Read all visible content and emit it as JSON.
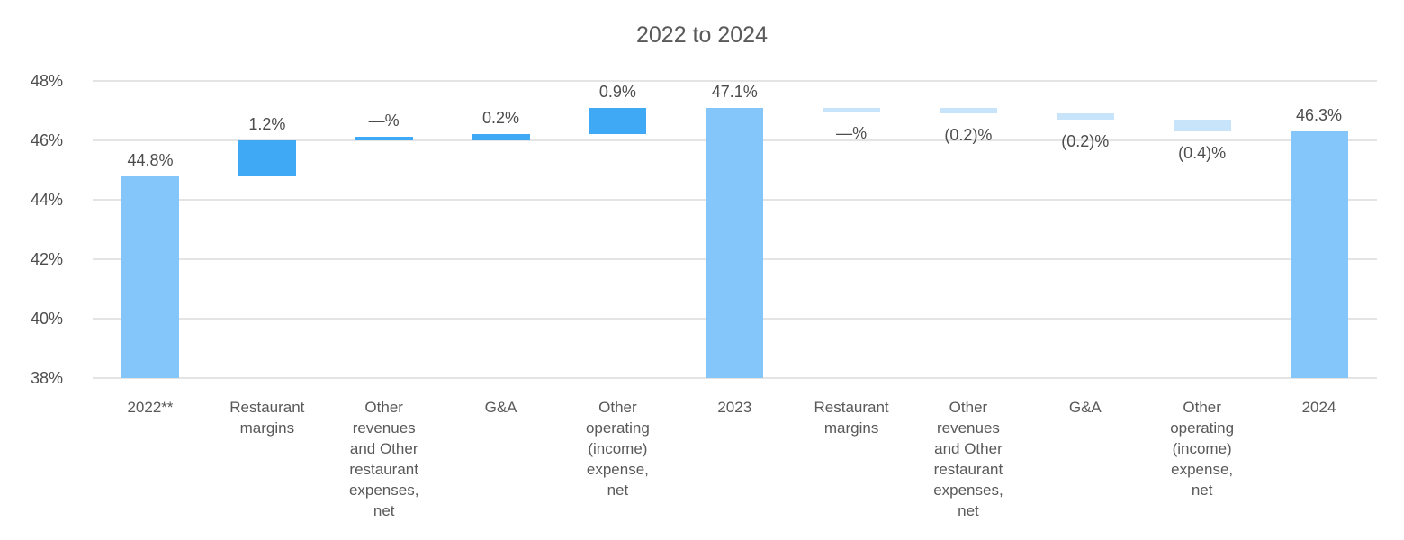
{
  "title": "2022 to 2024",
  "chart_data": {
    "type": "bar",
    "subtype": "waterfall",
    "title": "2022 to 2024",
    "y_axis": {
      "min": 38,
      "max": 48,
      "tick_step": 2,
      "tick_labels": [
        "48%",
        "46%",
        "44%",
        "42%",
        "40%",
        "38%"
      ],
      "grid": true
    },
    "colors": {
      "total": "#84C6F9",
      "increase": "#3FA9F6",
      "decrease": "#C8E4FB"
    },
    "bars": [
      {
        "label": "2022**",
        "type": "total",
        "start": 38,
        "end": 44.8,
        "value": 44.8,
        "value_label": "44.8%"
      },
      {
        "label": "Restaurant margins",
        "type": "increase",
        "start": 44.8,
        "end": 46.0,
        "delta": 1.2,
        "value_label": "1.2%"
      },
      {
        "label": "Other revenues and Other restaurant expenses, net",
        "type": "increase",
        "start": 46.0,
        "end": 46.0,
        "delta": 0.0,
        "value_label": "—%"
      },
      {
        "label": "G&A",
        "type": "increase",
        "start": 46.0,
        "end": 46.2,
        "delta": 0.2,
        "value_label": "0.2%"
      },
      {
        "label": "Other operating (income) expense, net",
        "type": "increase",
        "start": 46.2,
        "end": 47.1,
        "delta": 0.9,
        "value_label": "0.9%"
      },
      {
        "label": "2023",
        "type": "total",
        "start": 38,
        "end": 47.1,
        "value": 47.1,
        "value_label": "47.1%"
      },
      {
        "label": "Restaurant margins",
        "type": "decrease",
        "start": 47.1,
        "end": 47.1,
        "delta": 0.0,
        "value_label": "—%"
      },
      {
        "label": "Other revenues and Other restaurant expenses, net",
        "type": "decrease",
        "start": 47.1,
        "end": 46.9,
        "delta": -0.2,
        "value_label": "(0.2)%"
      },
      {
        "label": "G&A",
        "type": "decrease",
        "start": 46.9,
        "end": 46.7,
        "delta": -0.2,
        "value_label": "(0.2)%"
      },
      {
        "label": "Other operating (income) expense, net",
        "type": "decrease",
        "start": 46.7,
        "end": 46.3,
        "delta": -0.4,
        "value_label": "(0.4)%"
      },
      {
        "label": "2024",
        "type": "total",
        "start": 38,
        "end": 46.3,
        "value": 46.3,
        "value_label": "46.3%"
      }
    ]
  }
}
